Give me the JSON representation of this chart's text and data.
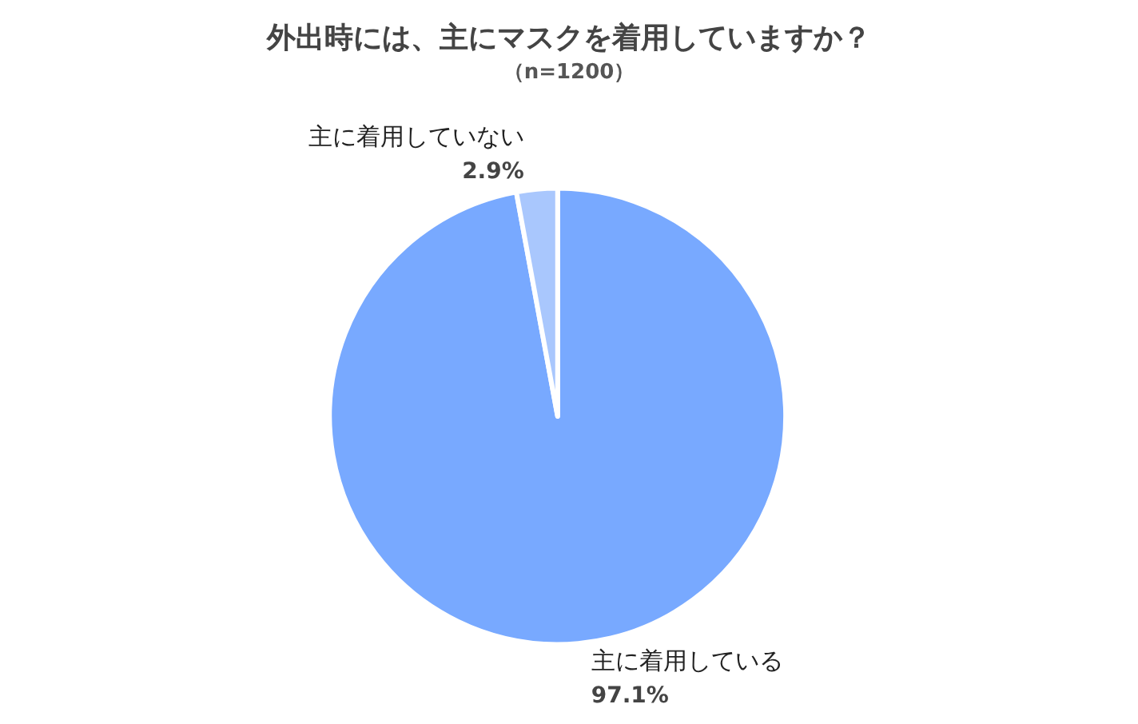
{
  "chart_data": {
    "type": "pie",
    "title": "外出時には、主にマスクを着用していますか？",
    "subtitle": "（n=1200）",
    "categories": [
      "主に着用している",
      "主に着用していない"
    ],
    "values": [
      97.1,
      2.9
    ],
    "colors": [
      "#78a9ff",
      "#a9c7fd"
    ],
    "value_labels": [
      "97.1%",
      "2.9%"
    ],
    "legend": false
  }
}
